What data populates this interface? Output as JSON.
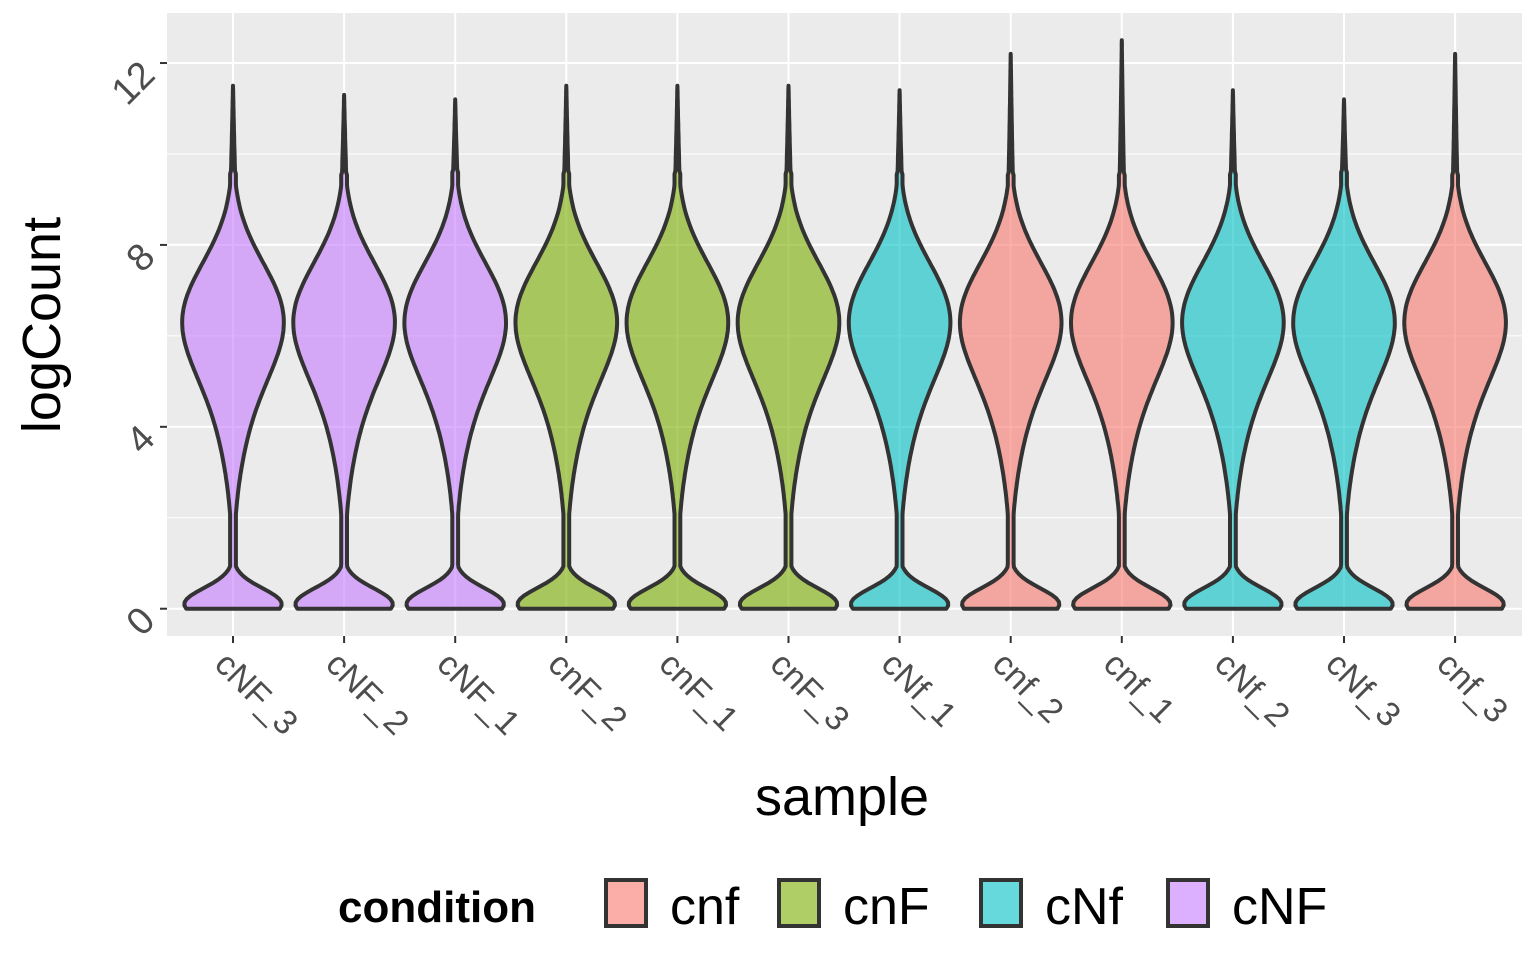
{
  "chart_data": {
    "type": "violin",
    "title": "",
    "xlabel": "sample",
    "ylabel": "logCount",
    "ylim": [
      -0.6,
      13.1
    ],
    "y_ticks": [
      0,
      4,
      8,
      12
    ],
    "y_tick_labels": [
      "0",
      "4",
      "8",
      "12"
    ],
    "grid": true,
    "legend": {
      "position": "bottom",
      "title": "condition",
      "entries": [
        {
          "label": "cnf",
          "color": "#F8766D"
        },
        {
          "label": "cnF",
          "color": "#7CAE00"
        },
        {
          "label": "cNf",
          "color": "#00BFC4"
        },
        {
          "label": "cNF",
          "color": "#C77CFF"
        }
      ]
    },
    "categories": [
      "cNF_3",
      "cNF_2",
      "cNF_1",
      "cnF_2",
      "cnF_1",
      "cnF_3",
      "cNf_1",
      "cnf_2",
      "cnf_1",
      "cNf_2",
      "cNf_3",
      "cnf_3"
    ],
    "category_condition": [
      "cNF",
      "cNF",
      "cNF",
      "cnF",
      "cnF",
      "cnF",
      "cNf",
      "cnf",
      "cnf",
      "cNf",
      "cNf",
      "cnf"
    ],
    "series_max": [
      11.5,
      11.3,
      11.2,
      11.5,
      11.5,
      11.5,
      11.4,
      12.2,
      12.5,
      11.4,
      11.2,
      12.2
    ],
    "series_min": [
      0,
      0,
      0,
      0,
      0,
      0,
      0,
      0,
      0,
      0,
      0,
      0
    ],
    "density_peak": 6.5,
    "fill_alpha": 0.6,
    "outline_color": "#333333"
  }
}
